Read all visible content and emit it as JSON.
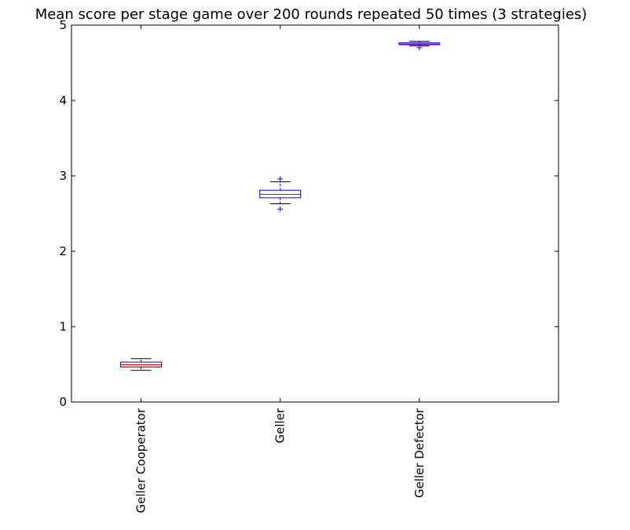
{
  "chart_data": {
    "type": "boxplot",
    "title": "Mean score per stage game over 200 rounds repeated 50 times (3 strategies)",
    "xlabel": "",
    "ylabel": "",
    "ylim": [
      0,
      5
    ],
    "yticks": [
      "0",
      "1",
      "2",
      "3",
      "4",
      "5"
    ],
    "grid": false,
    "categories": [
      "Geller Cooperator",
      "Geller",
      "Geller Defector"
    ],
    "boxes": [
      {
        "whislo": 0.42,
        "q1": 0.465,
        "median": 0.495,
        "q3": 0.53,
        "whishi": 0.575,
        "fliers": []
      },
      {
        "whislo": 2.63,
        "q1": 2.71,
        "median": 2.755,
        "q3": 2.81,
        "whishi": 2.92,
        "fliers": [
          2.56,
          2.96
        ]
      },
      {
        "whislo": 4.725,
        "q1": 4.74,
        "median": 4.75,
        "q3": 4.765,
        "whishi": 4.785,
        "fliers": [
          4.7
        ]
      }
    ],
    "colors": {
      "box": "#0000ff",
      "median": "#ff0000",
      "whisker_cap": "#000000",
      "flier": "#0000ff"
    }
  }
}
